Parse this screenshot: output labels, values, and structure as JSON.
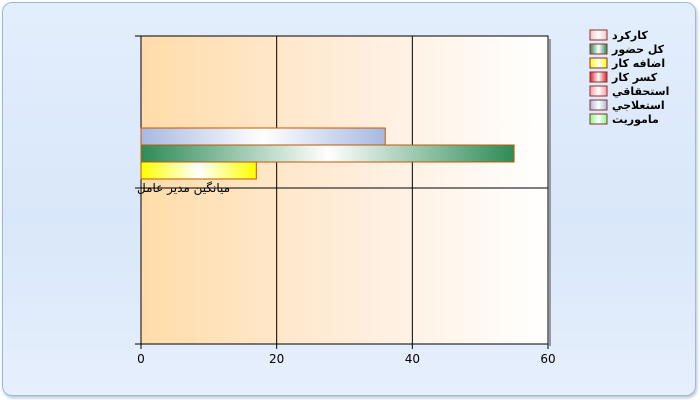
{
  "chart_data": {
    "type": "bar",
    "orientation": "horizontal",
    "categories": [
      "ميانگين مدير عامل"
    ],
    "series": [
      {
        "name": "کارکرد",
        "values": [
          0
        ],
        "color": "#f2c7c7"
      },
      {
        "name": "کل حضور",
        "values": [
          55
        ],
        "color": "#2e8b57"
      },
      {
        "name": "اضافه کار",
        "values": [
          17
        ],
        "color": "#ffff00"
      },
      {
        "name": "کسر کار",
        "values": [
          0
        ],
        "color": "#e0202a"
      },
      {
        "name": "استحقاقي",
        "values": [
          0
        ],
        "color": "#ff9aa8"
      },
      {
        "name": "استعلاجي",
        "values": [
          36
        ],
        "color": "#a8b8e0"
      },
      {
        "name": "ماموريت",
        "values": [
          0
        ],
        "color": "#80ff80"
      }
    ],
    "xlim": [
      0,
      60
    ],
    "xticks": [
      0,
      20,
      40,
      60
    ],
    "grid": true,
    "legend_position": "top-right"
  }
}
